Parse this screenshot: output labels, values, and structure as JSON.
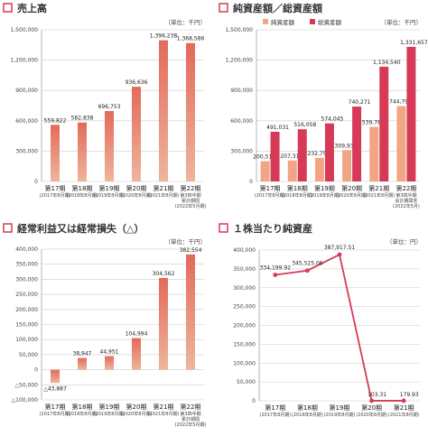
{
  "colors": {
    "accent": "#d63a57",
    "bar_gradient_top": "#e36a5a",
    "bar_gradient_bottom": "#eeb59d",
    "net_bar": "#f0a685",
    "total_bar": "#d63a57",
    "line": "#d63a57",
    "grid": "#cccccc"
  },
  "charts": [
    {
      "title": "売上高",
      "unit": "（単位：千円）"
    },
    {
      "title": "純資産額／総資産額",
      "unit": "（単位：千円）"
    },
    {
      "title": "経常利益又は経常損失（△）",
      "unit": "（単位：千円）"
    },
    {
      "title": "１株当たり純資産",
      "unit": "（単位：円）"
    }
  ],
  "chart_data": [
    {
      "type": "bar",
      "title": "売上高",
      "categories": [
        "第17期",
        "第18期",
        "第19期",
        "第20期",
        "第21期",
        "第22期"
      ],
      "category_sublabels": [
        [
          "(2017年8月期)"
        ],
        [
          "(2018年8月期)"
        ],
        [
          "(2019年8月期)"
        ],
        [
          "(2020年8月期)"
        ],
        [
          "(2021年8月期)"
        ],
        [
          "第3四半期",
          "累計期間",
          "(2022年5月期)"
        ]
      ],
      "values": [
        559822,
        582838,
        696753,
        936636,
        1396238,
        1368586
      ],
      "value_labels": [
        "559,822",
        "582,838",
        "696,753",
        "936,636",
        "1,396,238",
        "1,368,586"
      ],
      "ylim": [
        0,
        1500000
      ],
      "yticks": [
        0,
        300000,
        600000,
        900000,
        1200000,
        1500000
      ],
      "ytick_labels": [
        "0",
        "300,000",
        "600,000",
        "900,000",
        "1,200,000",
        "1,500,000"
      ],
      "grid": true
    },
    {
      "type": "bar",
      "title": "純資産額／総資産額",
      "categories": [
        "第17期",
        "第18期",
        "第19期",
        "第20期",
        "第21期",
        "第22期"
      ],
      "category_sublabels": [
        [
          "(2017年8月期)"
        ],
        [
          "(2018年8月期)"
        ],
        [
          "(2019年8月期)"
        ],
        [
          "(2020年8月期)"
        ],
        [
          "(2021年8月期)"
        ],
        [
          "第3四半期",
          "会計期間末",
          "(2022年5月)"
        ]
      ],
      "series": [
        {
          "name": "純資産額",
          "values": [
            200513,
            207318,
            232759,
            309934,
            539788,
            744794
          ],
          "value_labels": [
            "200,513",
            "207,318",
            "232,759",
            "309,934",
            "539,788",
            "744,794"
          ]
        },
        {
          "name": "総資産額",
          "values": [
            491031,
            516058,
            574045,
            740271,
            1134540,
            1331657
          ],
          "value_labels": [
            "491,031",
            "516,058",
            "574,045",
            "740,271",
            "1,134,540",
            "1,331,657"
          ]
        }
      ],
      "ylim": [
        0,
        1500000
      ],
      "yticks": [
        0,
        300000,
        600000,
        900000,
        1200000,
        1500000
      ],
      "ytick_labels": [
        "0",
        "300,000",
        "600,000",
        "900,000",
        "1,200,000",
        "1,500,000"
      ],
      "legend": "top-left",
      "grid": true
    },
    {
      "type": "bar",
      "title": "経常利益又は経常損失（△）",
      "categories": [
        "第17期",
        "第18期",
        "第19期",
        "第20期",
        "第21期",
        "第22期"
      ],
      "category_sublabels": [
        [
          "(2017年8月期)"
        ],
        [
          "(2018年8月期)"
        ],
        [
          "(2019年8月期)"
        ],
        [
          "(2020年8月期)"
        ],
        [
          "(2021年8月期)"
        ],
        [
          "第3四半期",
          "累計期間",
          "(2022年5月期)"
        ]
      ],
      "values": [
        -43887,
        38947,
        44951,
        104994,
        304562,
        382554
      ],
      "value_labels": [
        "△43,887",
        "38,947",
        "44,951",
        "104,994",
        "304,562",
        "382,554"
      ],
      "ylim": [
        -100000,
        400000
      ],
      "yticks": [
        -100000,
        -50000,
        0,
        50000,
        100000,
        150000,
        200000,
        250000,
        300000,
        350000,
        400000
      ],
      "ytick_labels": [
        "△100,000",
        "△50,000",
        "0",
        "50,000",
        "100,000",
        "150,000",
        "200,000",
        "250,000",
        "300,000",
        "350,000",
        "400,000"
      ],
      "grid": true
    },
    {
      "type": "line",
      "title": "１株当たり純資産",
      "categories": [
        "第17期",
        "第18期",
        "第19期",
        "第20期",
        "第21期"
      ],
      "category_sublabels": [
        [
          "(2017年8月期)"
        ],
        [
          "(2018年8月期)"
        ],
        [
          "(2019年8月期)"
        ],
        [
          "(2020年8月期)"
        ],
        [
          "(2021年8月期)"
        ]
      ],
      "values": [
        334199.92,
        345525.06,
        387917.51,
        103.31,
        179.93
      ],
      "value_labels": [
        "334,199.92",
        "345,525.06",
        "387,917.51",
        "103.31",
        "179.93"
      ],
      "ylim": [
        0,
        400000
      ],
      "yticks": [
        0,
        50000,
        100000,
        150000,
        200000,
        250000,
        300000,
        350000,
        400000
      ],
      "ytick_labels": [
        "0",
        "50,000",
        "100,000",
        "150,000",
        "200,000",
        "250,000",
        "300,000",
        "350,000",
        "400,000"
      ],
      "grid": true
    }
  ]
}
